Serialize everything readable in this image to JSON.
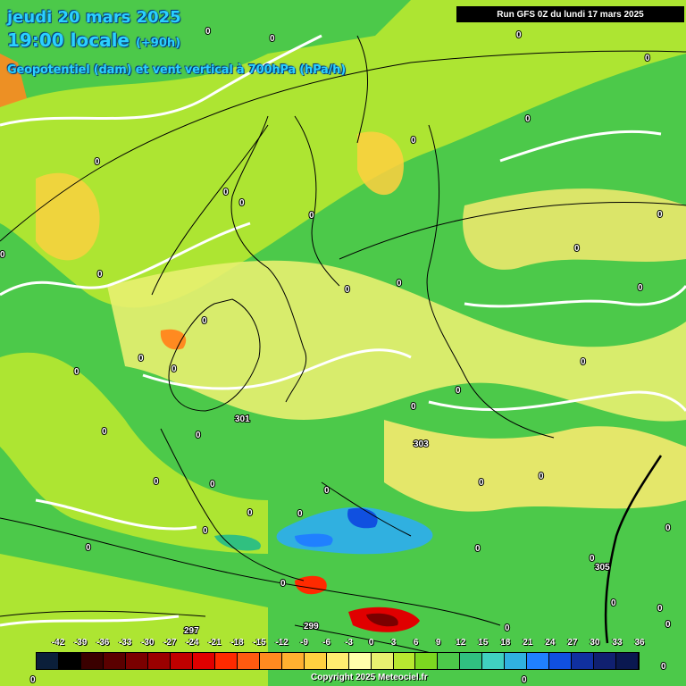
{
  "header": {
    "date": "jeudi 20 mars 2025",
    "time": "19:00 locale",
    "lead": "(+90h)",
    "subtitle": "Geopotentiel (dam) et vent vertical à 700hPa (hPa/h)"
  },
  "run_label": "Run GFS 0Z du lundi 17 mars 2025",
  "copyright": "Copyright 2025 Meteociel.fr",
  "colors": {
    "base_field": "#4cc94a",
    "contour": "#ffffff",
    "coastline": "#000000"
  },
  "legend": {
    "ticks": [
      "-42",
      "-39",
      "-36",
      "-33",
      "-30",
      "-27",
      "-24",
      "-21",
      "-18",
      "-15",
      "-12",
      "-9",
      "-6",
      "-3",
      "0",
      "3",
      "6",
      "9",
      "12",
      "15",
      "18",
      "21",
      "24",
      "27",
      "30",
      "33",
      "36"
    ],
    "colors": [
      "#0b1f3a",
      "#000000",
      "#3a0000",
      "#5a0000",
      "#7a0000",
      "#9a0000",
      "#c00000",
      "#e00000",
      "#ff2a00",
      "#ff5a10",
      "#ff8a20",
      "#ffb030",
      "#ffd040",
      "#ffec70",
      "#ffffaa",
      "#e8f070",
      "#b8e830",
      "#7cd820",
      "#4cc94a",
      "#30c080",
      "#40d0c0",
      "#30b0e0",
      "#2080ff",
      "#1050e0",
      "#1030a0",
      "#102070",
      "#0a1850"
    ]
  },
  "geopotential_labels": [
    "301",
    "303",
    "305",
    "297",
    "299"
  ],
  "zero_label": "0"
}
